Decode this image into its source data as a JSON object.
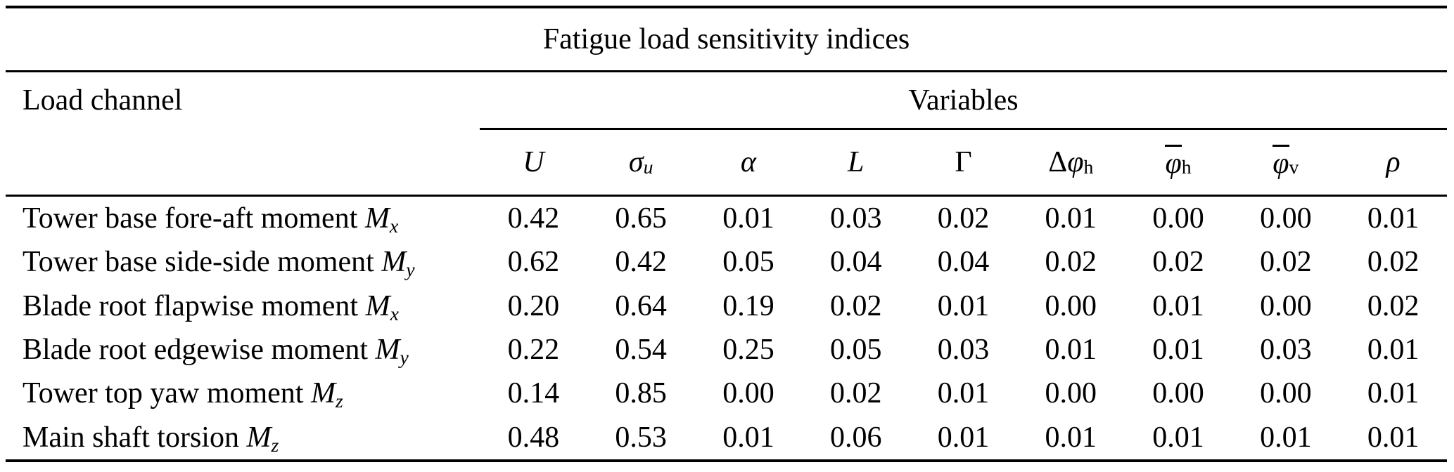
{
  "table": {
    "title": "Fatigue load sensitivity indices",
    "load_channel_header": "Load channel",
    "variables_header": "Variables",
    "text_color": "#000000",
    "background_color": "#ffffff",
    "columns": [
      {
        "prefix": "",
        "main": "U",
        "sub": ""
      },
      {
        "prefix": "",
        "main": "σ",
        "sub": "u"
      },
      {
        "prefix": "",
        "main": "α",
        "sub": ""
      },
      {
        "prefix": "",
        "main": "L",
        "sub": ""
      },
      {
        "prefix": "",
        "main": "Γ",
        "sub": ""
      },
      {
        "prefix": "Δ",
        "main": "φ",
        "sub": "h"
      },
      {
        "prefix": "",
        "main": "φ",
        "sub": "h"
      },
      {
        "prefix": "",
        "main": "φ",
        "sub": "v"
      },
      {
        "prefix": "",
        "main": "ρ",
        "sub": ""
      }
    ],
    "rows": [
      {
        "channel": "Tower base fore-aft moment",
        "sym": "M",
        "sub": "x",
        "values": [
          "0.42",
          "0.65",
          "0.01",
          "0.03",
          "0.02",
          "0.01",
          "0.00",
          "0.00",
          "0.01"
        ]
      },
      {
        "channel": "Tower base side-side moment",
        "sym": "M",
        "sub": "y",
        "values": [
          "0.62",
          "0.42",
          "0.05",
          "0.04",
          "0.04",
          "0.02",
          "0.02",
          "0.02",
          "0.02"
        ]
      },
      {
        "channel": "Blade root flapwise moment",
        "sym": "M",
        "sub": "x",
        "values": [
          "0.20",
          "0.64",
          "0.19",
          "0.02",
          "0.01",
          "0.00",
          "0.01",
          "0.00",
          "0.02"
        ]
      },
      {
        "channel": "Blade root edgewise moment",
        "sym": "M",
        "sub": "y",
        "values": [
          "0.22",
          "0.54",
          "0.25",
          "0.05",
          "0.03",
          "0.01",
          "0.01",
          "0.03",
          "0.01"
        ]
      },
      {
        "channel": "Tower top yaw moment",
        "sym": "M",
        "sub": "z",
        "values": [
          "0.14",
          "0.85",
          "0.00",
          "0.02",
          "0.01",
          "0.00",
          "0.00",
          "0.00",
          "0.01"
        ]
      },
      {
        "channel": "Main shaft torsion",
        "sym": "M",
        "sub": "z",
        "values": [
          "0.48",
          "0.53",
          "0.01",
          "0.06",
          "0.01",
          "0.01",
          "0.01",
          "0.01",
          "0.01"
        ]
      }
    ]
  }
}
